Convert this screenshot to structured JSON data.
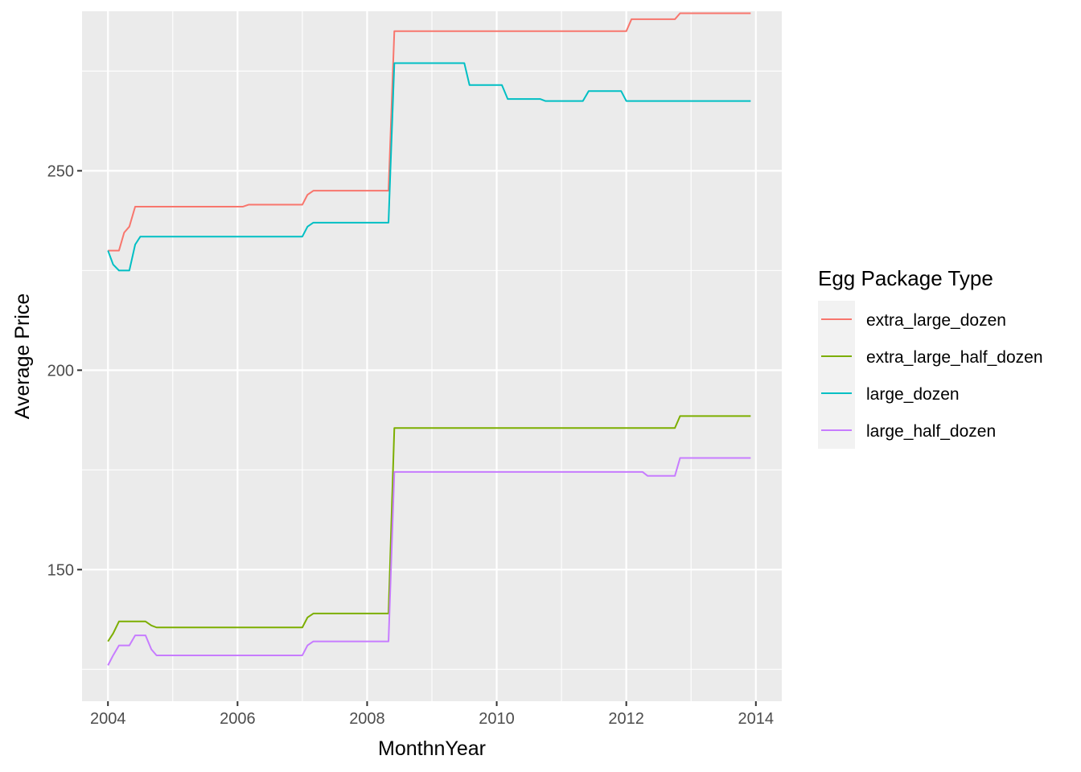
{
  "chart_data": {
    "type": "line",
    "xlabel": "MonthnYear",
    "ylabel": "Average Price",
    "x_ticks": [
      "2004",
      "2006",
      "2008",
      "2010",
      "2012",
      "2014"
    ],
    "y_ticks": [
      "150",
      "200",
      "250"
    ],
    "xlim": [
      2003.6,
      2014.4
    ],
    "ylim": [
      117,
      290
    ],
    "grid": true,
    "legend": {
      "title": "Egg Package Type",
      "placement": "right"
    },
    "series": [
      {
        "name": "extra_large_dozen",
        "color": "#F8766D",
        "points": [
          [
            2004.0,
            230.0
          ],
          [
            2004.17,
            230.0
          ],
          [
            2004.25,
            234.5
          ],
          [
            2004.33,
            236.0
          ],
          [
            2004.42,
            241.0
          ],
          [
            2006.08,
            241.0
          ],
          [
            2006.17,
            241.5
          ],
          [
            2007.0,
            241.5
          ],
          [
            2007.08,
            244.0
          ],
          [
            2007.17,
            245.0
          ],
          [
            2008.33,
            245.0
          ],
          [
            2008.42,
            285.0
          ],
          [
            2012.0,
            285.0
          ],
          [
            2012.08,
            288.0
          ],
          [
            2012.75,
            288.0
          ],
          [
            2012.83,
            289.5
          ],
          [
            2013.92,
            289.5
          ]
        ]
      },
      {
        "name": "extra_large_half_dozen",
        "color": "#7CAE00",
        "points": [
          [
            2004.0,
            132.0
          ],
          [
            2004.08,
            134.0
          ],
          [
            2004.17,
            137.0
          ],
          [
            2004.58,
            137.0
          ],
          [
            2004.67,
            136.0
          ],
          [
            2004.75,
            135.5
          ],
          [
            2007.0,
            135.5
          ],
          [
            2007.08,
            138.0
          ],
          [
            2007.17,
            139.0
          ],
          [
            2008.33,
            139.0
          ],
          [
            2008.42,
            185.5
          ],
          [
            2012.75,
            185.5
          ],
          [
            2012.83,
            188.5
          ],
          [
            2013.92,
            188.5
          ]
        ]
      },
      {
        "name": "large_dozen",
        "color": "#00BFC4",
        "points": [
          [
            2004.0,
            230.0
          ],
          [
            2004.08,
            226.5
          ],
          [
            2004.17,
            225.0
          ],
          [
            2004.33,
            225.0
          ],
          [
            2004.42,
            231.5
          ],
          [
            2004.5,
            233.5
          ],
          [
            2007.0,
            233.5
          ],
          [
            2007.08,
            236.0
          ],
          [
            2007.17,
            237.0
          ],
          [
            2008.33,
            237.0
          ],
          [
            2008.42,
            277.0
          ],
          [
            2009.5,
            277.0
          ],
          [
            2009.58,
            271.5
          ],
          [
            2010.08,
            271.5
          ],
          [
            2010.17,
            268.0
          ],
          [
            2010.67,
            268.0
          ],
          [
            2010.75,
            267.5
          ],
          [
            2011.33,
            267.5
          ],
          [
            2011.42,
            270.0
          ],
          [
            2011.92,
            270.0
          ],
          [
            2012.0,
            267.5
          ],
          [
            2013.92,
            267.5
          ]
        ]
      },
      {
        "name": "large_half_dozen",
        "color": "#C77CFF",
        "points": [
          [
            2004.0,
            126.0
          ],
          [
            2004.08,
            128.5
          ],
          [
            2004.17,
            131.0
          ],
          [
            2004.33,
            131.0
          ],
          [
            2004.42,
            133.5
          ],
          [
            2004.58,
            133.5
          ],
          [
            2004.67,
            130.0
          ],
          [
            2004.75,
            128.5
          ],
          [
            2007.0,
            128.5
          ],
          [
            2007.08,
            131.0
          ],
          [
            2007.17,
            132.0
          ],
          [
            2008.33,
            132.0
          ],
          [
            2008.42,
            174.5
          ],
          [
            2012.25,
            174.5
          ],
          [
            2012.33,
            173.5
          ],
          [
            2012.75,
            173.5
          ],
          [
            2012.83,
            178.0
          ],
          [
            2013.92,
            178.0
          ]
        ]
      }
    ]
  }
}
